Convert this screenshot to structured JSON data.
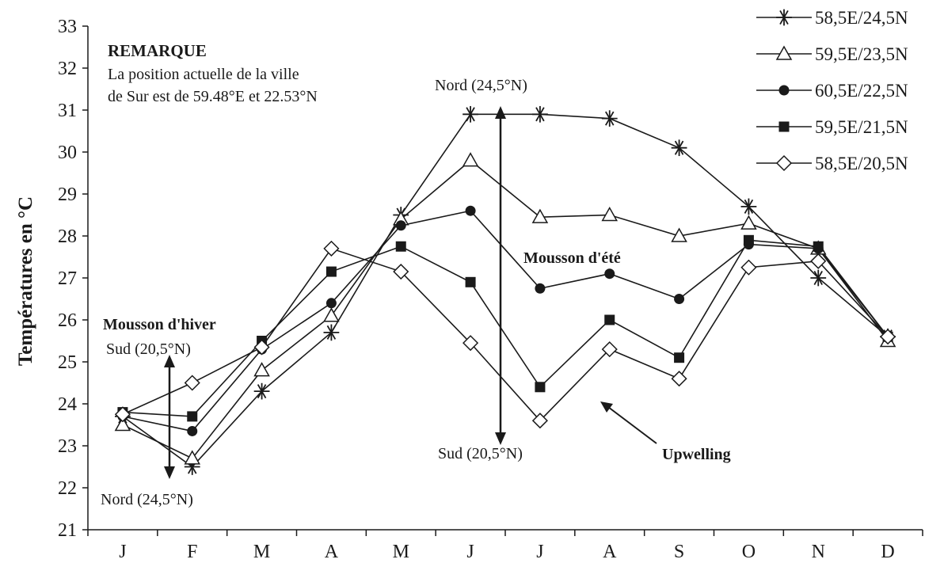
{
  "chart_data": {
    "type": "line",
    "ylabel": "Températures en °C",
    "xlabel": "",
    "ylim": [
      21,
      33
    ],
    "yticks": [
      "21",
      "22",
      "23",
      "24",
      "25",
      "26",
      "27",
      "28",
      "29",
      "30",
      "31",
      "32",
      "33"
    ],
    "categories": [
      "J",
      "F",
      "M",
      "A",
      "M",
      "J",
      "J",
      "A",
      "S",
      "O",
      "N",
      "D"
    ],
    "legend_position": "top-right",
    "grid": false,
    "series": [
      {
        "name": "58,5E/24,5N",
        "marker": "star",
        "values": [
          23.7,
          22.5,
          24.3,
          25.7,
          28.5,
          30.9,
          30.9,
          30.8,
          30.1,
          28.7,
          27.0,
          25.6
        ]
      },
      {
        "name": "59,5E/23,5N",
        "marker": "triangle",
        "values": [
          23.5,
          22.7,
          24.8,
          26.1,
          28.4,
          29.8,
          28.45,
          28.5,
          28.0,
          28.3,
          27.7,
          25.5
        ]
      },
      {
        "name": "60,5E/22,5N",
        "marker": "circle",
        "values": [
          23.7,
          23.35,
          25.3,
          26.4,
          28.25,
          28.6,
          26.75,
          27.1,
          26.5,
          27.8,
          27.7,
          25.6
        ]
      },
      {
        "name": "59,5E/21,5N",
        "marker": "square",
        "values": [
          23.8,
          23.7,
          25.5,
          27.15,
          27.75,
          26.9,
          24.4,
          26.0,
          25.1,
          27.9,
          27.75,
          25.6
        ]
      },
      {
        "name": "58,5E/20,5N",
        "marker": "diamond",
        "values": [
          23.75,
          24.5,
          25.35,
          27.7,
          27.15,
          25.45,
          23.6,
          25.3,
          24.6,
          27.25,
          27.4,
          25.6
        ]
      }
    ],
    "annotations": {
      "remark_title": "REMARQUE",
      "remark_line1": "La position actuelle de la ville",
      "remark_line2": "de Sur est de 59.48°E et 22.53°N",
      "winter_monsoon": "Mousson d'hiver",
      "winter_south": "Sud (20,5°N)",
      "winter_north": "Nord (24,5°N)",
      "summer_north": "Nord (24,5°N)",
      "summer_south": "Sud (20,5°N)",
      "summer_monsoon": "Mousson d'été",
      "upwelling": "Upwelling"
    },
    "colors": {
      "line": "#1a1a1a",
      "background": "#ffffff"
    }
  }
}
